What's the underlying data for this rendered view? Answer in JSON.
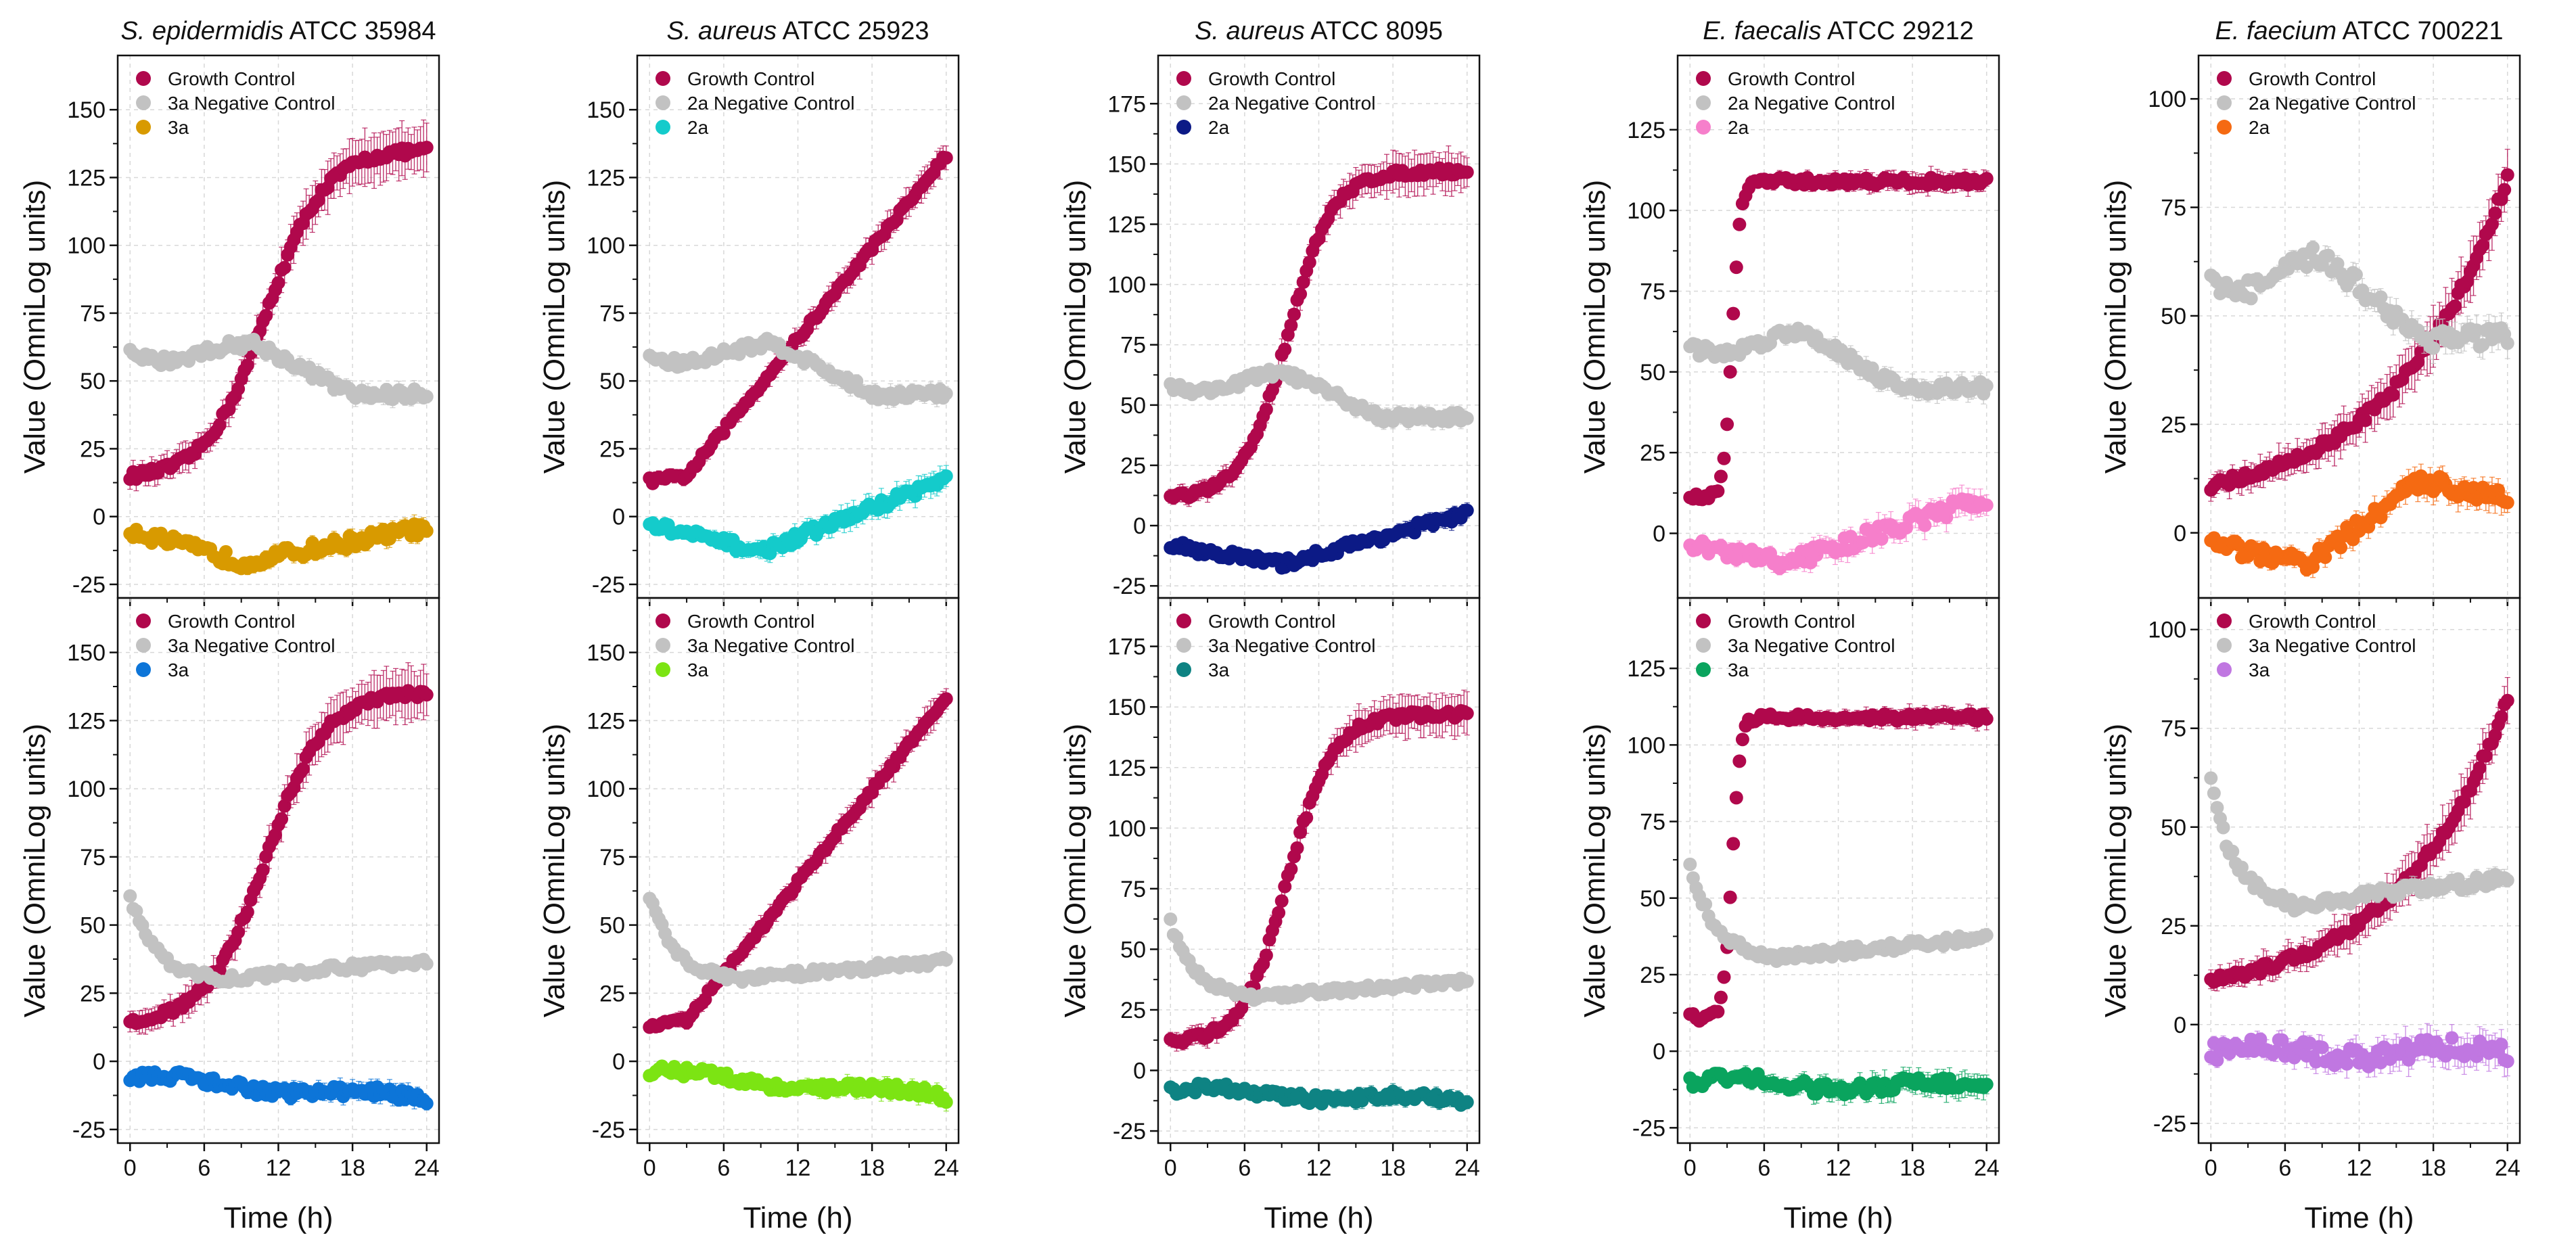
{
  "figure": {
    "y_axis_label": "Value (OmniLog units)",
    "x_axis_label": "Time (h)"
  },
  "colors": {
    "growth": "#b0084c",
    "negative": "#c2c2c2",
    "3a_row1": "#d89a00",
    "2a_sa25923_row1": "#14cbcb",
    "2a_sa8095_row1": "#0c1a86",
    "2a_ef29212_row1": "#f67fcb",
    "2a_efm700221_row1": "#f56a12",
    "3a_se35984_row2": "#0d75d8",
    "3a_sa25923_row2": "#7ce413",
    "3a_sa8095_row2": "#0e8383",
    "3a_ef29212_row2": "#0aa45e",
    "3a_efm700221_row2": "#c077e1"
  },
  "chart_data": [
    {
      "type": "scatter",
      "species": "S. epidermidis",
      "strain": "ATCC 35984",
      "row": 1,
      "ylim": [
        -30,
        170
      ],
      "yticks": [
        -25,
        0,
        25,
        50,
        75,
        100,
        125,
        150
      ],
      "xticks": [
        0,
        6,
        12,
        18,
        24
      ],
      "xlim": [
        -1,
        25
      ],
      "legend": [
        "Growth Control",
        "3a Negative Control",
        "3a"
      ],
      "series": [
        {
          "name": "Growth Control",
          "color_key": "growth",
          "start": 15,
          "end": 135,
          "mid": 11,
          "k": 0.42,
          "noise": 1.5,
          "err": 9
        },
        {
          "name": "3a Negative Control",
          "color_key": "negative",
          "shape": "hump",
          "base": 60,
          "peak": 64,
          "peak_t": 10,
          "end": 45,
          "noise": 2,
          "err": 3
        },
        {
          "name": "3a",
          "color_key": "3a_row1",
          "shape": "dip",
          "base": -5,
          "low": -17,
          "low_t": 9,
          "end": -4,
          "noise": 2.5,
          "err": 3
        }
      ]
    },
    {
      "type": "scatter",
      "species": "S. aureus",
      "strain": "ATCC 25923",
      "row": 1,
      "ylim": [
        -30,
        170
      ],
      "yticks": [
        -25,
        0,
        25,
        50,
        75,
        100,
        125,
        150
      ],
      "xticks": [
        0,
        6,
        12,
        18,
        24
      ],
      "xlim": [
        -1,
        25
      ],
      "legend": [
        "Growth Control",
        "2a Negative Control",
        "2a"
      ],
      "series": [
        {
          "name": "Growth Control",
          "color_key": "growth",
          "shape": "linear",
          "start": 13,
          "end": 133,
          "lag": 3,
          "noise": 1.2,
          "err": 5
        },
        {
          "name": "2a Negative Control",
          "color_key": "negative",
          "shape": "hump",
          "base": 59,
          "peak": 64,
          "peak_t": 10,
          "end": 45,
          "noise": 2,
          "err": 3
        },
        {
          "name": "2a",
          "color_key": "2a_sa25923_row1",
          "shape": "dip",
          "base": -3,
          "low": -13,
          "low_t": 9,
          "end": 14,
          "noise": 2,
          "err": 4
        }
      ]
    },
    {
      "type": "scatter",
      "species": "S. aureus",
      "strain": "ATCC 8095",
      "row": 1,
      "ylim": [
        -30,
        195
      ],
      "yticks": [
        -25,
        0,
        25,
        50,
        75,
        100,
        125,
        150,
        175
      ],
      "xticks": [
        0,
        6,
        12,
        18,
        24
      ],
      "xlim": [
        -1,
        25
      ],
      "legend": [
        "Growth Control",
        "2a Negative Control",
        "2a"
      ],
      "series": [
        {
          "name": "Growth Control",
          "color_key": "growth",
          "start": 12,
          "end": 147,
          "mid": 9.5,
          "k": 0.55,
          "noise": 1.5,
          "err": 8
        },
        {
          "name": "2a Negative Control",
          "color_key": "negative",
          "shape": "hump",
          "base": 58,
          "peak": 64,
          "peak_t": 9,
          "end": 45,
          "noise": 2,
          "err": 3
        },
        {
          "name": "2a",
          "color_key": "2a_sa8095_row1",
          "shape": "dip",
          "base": -8,
          "low": -16,
          "low_t": 9,
          "end": 5,
          "noise": 2,
          "err": 3
        }
      ]
    },
    {
      "type": "scatter",
      "species": "E. faecalis",
      "strain": "ATCC 29212",
      "row": 1,
      "ylim": [
        -20,
        148
      ],
      "yticks": [
        0,
        25,
        50,
        75,
        100,
        125
      ],
      "xticks": [
        0,
        6,
        12,
        18,
        24
      ],
      "xlim": [
        -1,
        25
      ],
      "legend": [
        "Growth Control",
        "2a Negative Control",
        "2a"
      ],
      "series": [
        {
          "name": "Growth Control",
          "color_key": "growth",
          "start": 11,
          "end": 109,
          "mid": 3.4,
          "k": 3.0,
          "noise": 1.2,
          "err": 3
        },
        {
          "name": "2a Negative Control",
          "color_key": "negative",
          "shape": "hump",
          "base": 58,
          "peak": 63,
          "peak_t": 9,
          "end": 45,
          "noise": 2,
          "err": 3
        },
        {
          "name": "2a",
          "color_key": "2a_ef29212_row1",
          "shape": "dip",
          "base": -4,
          "low": -9,
          "low_t": 8,
          "end": 11,
          "noise": 2.5,
          "err": 4
        }
      ]
    },
    {
      "type": "scatter",
      "species": "E. faecium",
      "strain": "ATCC 700221",
      "row": 1,
      "ylim": [
        -15,
        110
      ],
      "yticks": [
        0,
        25,
        50,
        75,
        100
      ],
      "xticks": [
        0,
        6,
        12,
        18,
        24
      ],
      "xlim": [
        -1,
        25
      ],
      "legend": [
        "Growth Control",
        "2a Negative Control",
        "2a"
      ],
      "series": [
        {
          "name": "Growth Control",
          "color_key": "growth",
          "shape": "expo",
          "start": 11,
          "end": 82,
          "noise": 1.2,
          "err": 6
        },
        {
          "name": "2a Negative Control",
          "color_key": "negative",
          "shape": "hump",
          "base": 58,
          "peak": 64,
          "peak_t": 9,
          "end": 45,
          "noise": 2.5,
          "err": 3
        },
        {
          "name": "2a",
          "color_key": "2a_efm700221_row1",
          "shape": "dip",
          "base": -3,
          "low": -7,
          "low_t": 8,
          "end": 8,
          "bump": 12,
          "bump_t": 17,
          "noise": 2,
          "err": 3
        }
      ]
    },
    {
      "type": "scatter",
      "species": "S. epidermidis",
      "strain": "ATCC 35984",
      "row": 2,
      "ylim": [
        -30,
        170
      ],
      "yticks": [
        -25,
        0,
        25,
        50,
        75,
        100,
        125,
        150
      ],
      "xticks": [
        0,
        6,
        12,
        18,
        24
      ],
      "xlim": [
        -1,
        25
      ],
      "legend": [
        "Growth Control",
        "3a Negative Control",
        "3a"
      ],
      "series": [
        {
          "name": "Growth Control",
          "color_key": "growth",
          "start": 15,
          "end": 135,
          "mid": 11,
          "k": 0.42,
          "noise": 1.5,
          "err": 9
        },
        {
          "name": "3a Negative Control",
          "color_key": "negative",
          "shape": "decay",
          "start": 61,
          "low": 30,
          "low_t": 7,
          "end": 37,
          "noise": 1.5,
          "err": 2
        },
        {
          "name": "3a",
          "color_key": "3a_se35984_row2",
          "shape": "drift",
          "start": -6,
          "end": -14,
          "noise": 2,
          "err": 3
        }
      ]
    },
    {
      "type": "scatter",
      "species": "S. aureus",
      "strain": "ATCC 25923",
      "row": 2,
      "ylim": [
        -30,
        170
      ],
      "yticks": [
        -25,
        0,
        25,
        50,
        75,
        100,
        125,
        150
      ],
      "xticks": [
        0,
        6,
        12,
        18,
        24
      ],
      "xlim": [
        -1,
        25
      ],
      "legend": [
        "Growth Control",
        "3a Negative Control",
        "3a"
      ],
      "series": [
        {
          "name": "Growth Control",
          "color_key": "growth",
          "shape": "linear",
          "start": 13,
          "end": 133,
          "lag": 3,
          "noise": 1.2,
          "err": 5
        },
        {
          "name": "3a Negative Control",
          "color_key": "negative",
          "shape": "decay",
          "start": 61,
          "low": 30,
          "low_t": 7,
          "end": 37,
          "noise": 1.5,
          "err": 2
        },
        {
          "name": "3a",
          "color_key": "3a_sa25923_row2",
          "shape": "drift",
          "start": -4,
          "end": -13,
          "noise": 2,
          "err": 3
        }
      ]
    },
    {
      "type": "scatter",
      "species": "S. aureus",
      "strain": "ATCC 8095",
      "row": 2,
      "ylim": [
        -30,
        195
      ],
      "yticks": [
        -25,
        0,
        25,
        50,
        75,
        100,
        125,
        150,
        175
      ],
      "xticks": [
        0,
        6,
        12,
        18,
        24
      ],
      "xlim": [
        -1,
        25
      ],
      "legend": [
        "Growth Control",
        "3a Negative Control",
        "3a"
      ],
      "series": [
        {
          "name": "Growth Control",
          "color_key": "growth",
          "start": 12,
          "end": 147,
          "mid": 9.5,
          "k": 0.55,
          "noise": 1.5,
          "err": 8
        },
        {
          "name": "3a Negative Control",
          "color_key": "negative",
          "shape": "decay",
          "start": 61,
          "low": 30,
          "low_t": 6,
          "end": 37,
          "noise": 1.5,
          "err": 2
        },
        {
          "name": "3a",
          "color_key": "3a_sa8095_row2",
          "shape": "drift",
          "start": -8,
          "end": -13,
          "noise": 2,
          "err": 3
        }
      ]
    },
    {
      "type": "scatter",
      "species": "E. faecalis",
      "strain": "ATCC 29212",
      "row": 2,
      "ylim": [
        -30,
        148
      ],
      "yticks": [
        -25,
        0,
        25,
        50,
        75,
        100,
        125
      ],
      "xticks": [
        0,
        6,
        12,
        18,
        24
      ],
      "xlim": [
        -1,
        25
      ],
      "legend": [
        "Growth Control",
        "3a Negative Control",
        "3a"
      ],
      "series": [
        {
          "name": "Growth Control",
          "color_key": "growth",
          "start": 11,
          "end": 109,
          "mid": 3.4,
          "k": 3.0,
          "noise": 1.2,
          "err": 3
        },
        {
          "name": "3a Negative Control",
          "color_key": "negative",
          "shape": "decay",
          "start": 61,
          "low": 30,
          "low_t": 6,
          "end": 37,
          "noise": 1.5,
          "err": 2
        },
        {
          "name": "3a",
          "color_key": "3a_ef29212_row2",
          "shape": "drift",
          "start": -10,
          "end": -12,
          "noise": 2,
          "err": 4
        }
      ]
    },
    {
      "type": "scatter",
      "species": "E. faecium",
      "strain": "ATCC 700221",
      "row": 2,
      "ylim": [
        -30,
        108
      ],
      "yticks": [
        -25,
        0,
        25,
        50,
        75,
        100
      ],
      "xticks": [
        0,
        6,
        12,
        18,
        24
      ],
      "xlim": [
        -1,
        25
      ],
      "legend": [
        "Growth Control",
        "3a Negative Control",
        "3a"
      ],
      "series": [
        {
          "name": "Growth Control",
          "color_key": "growth",
          "shape": "expo",
          "start": 11,
          "end": 82,
          "noise": 1.2,
          "err": 6
        },
        {
          "name": "3a Negative Control",
          "color_key": "negative",
          "shape": "decay",
          "start": 61,
          "low": 30,
          "low_t": 6,
          "end": 37,
          "noise": 1.5,
          "err": 2
        },
        {
          "name": "3a",
          "color_key": "3a_efm700221_row2",
          "shape": "drift",
          "start": -7,
          "end": -7,
          "noise": 2.5,
          "err": 4
        }
      ]
    }
  ]
}
